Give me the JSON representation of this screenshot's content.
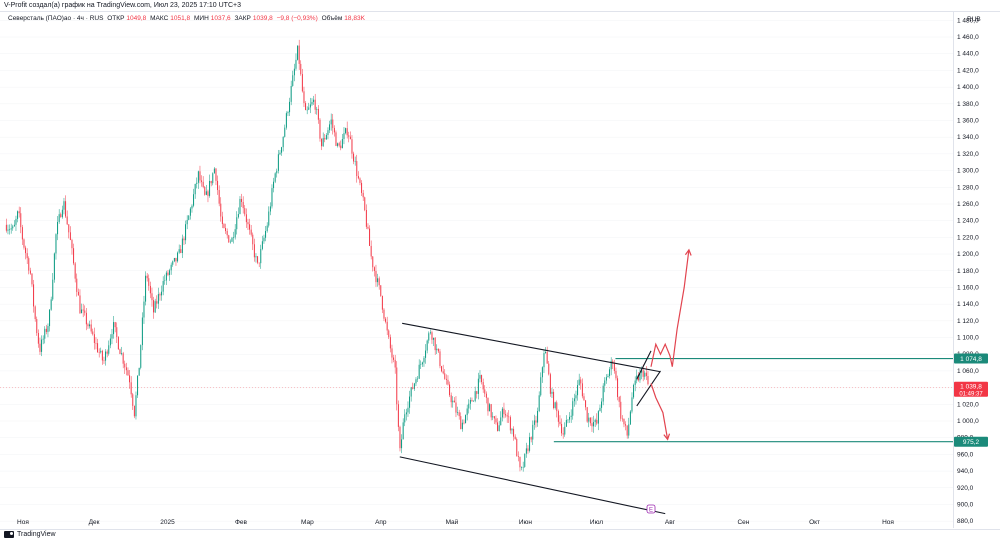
{
  "header": {
    "caption": "V-Profit создал(а) график на TradingView.com, Июл 23, 2025 17:10 UTC+3",
    "symbol": "Северсталь (ПАО)ао · 4ч · RUS",
    "open_label": "ОТКР",
    "open_value": "1049,8",
    "high_label": "МАКС",
    "high_value": "1051,8",
    "low_label": "МИН",
    "low_value": "1037,6",
    "close_label": "ЗАКР",
    "close_value": "1039,8",
    "change": "−9,8 (−0,93%)",
    "volume_label": "Объём",
    "volume_value": "18,83K"
  },
  "currency": "RUB",
  "footer": {
    "brand": "TradingView"
  },
  "chart_data": {
    "type": "candlestick",
    "title": "",
    "ylim": [
      873,
      1490
    ],
    "y_ticks": [
      "1 480,0",
      "1 460,0",
      "1 440,0",
      "1 420,0",
      "1 400,0",
      "1 380,0",
      "1 360,0",
      "1 340,0",
      "1 320,0",
      "1 300,0",
      "1 280,0",
      "1 260,0",
      "1 240,0",
      "1 220,0",
      "1 200,0",
      "1 180,0",
      "1 160,0",
      "1 140,0",
      "1 120,0",
      "1 100,0",
      "1 080,0",
      "1 060,0",
      "1 040,0",
      "1 020,0",
      "1 000,0",
      "980,0",
      "960,0",
      "940,0",
      "920,0",
      "900,0",
      "880,0"
    ],
    "y_tick_values": [
      1480,
      1460,
      1440,
      1420,
      1400,
      1380,
      1360,
      1340,
      1320,
      1300,
      1280,
      1260,
      1240,
      1220,
      1200,
      1180,
      1160,
      1140,
      1120,
      1100,
      1080,
      1060,
      1040,
      1020,
      1000,
      980,
      960,
      940,
      920,
      900,
      880
    ],
    "x_ticks": [
      "Ноя",
      "Дек",
      "2025",
      "Фев",
      "Мар",
      "Апр",
      "Май",
      "Июн",
      "Июл",
      "Авг",
      "Сен",
      "Окт",
      "Ноя"
    ],
    "price_path": [
      {
        "d": "2024-10-25",
        "v": 1235
      },
      {
        "d": "2024-10-28",
        "v": 1228
      },
      {
        "d": "2024-10-30",
        "v": 1250
      },
      {
        "d": "2024-11-01",
        "v": 1215
      },
      {
        "d": "2024-11-04",
        "v": 1180
      },
      {
        "d": "2024-11-06",
        "v": 1125
      },
      {
        "d": "2024-11-08",
        "v": 1085
      },
      {
        "d": "2024-11-12",
        "v": 1120
      },
      {
        "d": "2024-11-15",
        "v": 1225
      },
      {
        "d": "2024-11-18",
        "v": 1265
      },
      {
        "d": "2024-11-21",
        "v": 1215
      },
      {
        "d": "2024-11-25",
        "v": 1135
      },
      {
        "d": "2024-11-28",
        "v": 1118
      },
      {
        "d": "2024-12-02",
        "v": 1090
      },
      {
        "d": "2024-12-05",
        "v": 1070
      },
      {
        "d": "2024-12-09",
        "v": 1115
      },
      {
        "d": "2024-12-12",
        "v": 1085
      },
      {
        "d": "2024-12-16",
        "v": 1050
      },
      {
        "d": "2024-12-18",
        "v": 1010
      },
      {
        "d": "2024-12-20",
        "v": 1065
      },
      {
        "d": "2024-12-23",
        "v": 1180
      },
      {
        "d": "2024-12-26",
        "v": 1130
      },
      {
        "d": "2024-12-30",
        "v": 1165
      },
      {
        "d": "2025-01-06",
        "v": 1200
      },
      {
        "d": "2025-01-10",
        "v": 1245
      },
      {
        "d": "2025-01-14",
        "v": 1295
      },
      {
        "d": "2025-01-17",
        "v": 1265
      },
      {
        "d": "2025-01-21",
        "v": 1305
      },
      {
        "d": "2025-01-24",
        "v": 1230
      },
      {
        "d": "2025-01-28",
        "v": 1215
      },
      {
        "d": "2025-02-01",
        "v": 1270
      },
      {
        "d": "2025-02-05",
        "v": 1220
      },
      {
        "d": "2025-02-08",
        "v": 1185
      },
      {
        "d": "2025-02-12",
        "v": 1235
      },
      {
        "d": "2025-02-15",
        "v": 1290
      },
      {
        "d": "2025-02-19",
        "v": 1345
      },
      {
        "d": "2025-02-22",
        "v": 1395
      },
      {
        "d": "2025-02-25",
        "v": 1445
      },
      {
        "d": "2025-02-28",
        "v": 1365
      },
      {
        "d": "2025-03-04",
        "v": 1385
      },
      {
        "d": "2025-03-07",
        "v": 1330
      },
      {
        "d": "2025-03-11",
        "v": 1360
      },
      {
        "d": "2025-03-14",
        "v": 1325
      },
      {
        "d": "2025-03-18",
        "v": 1350
      },
      {
        "d": "2025-03-21",
        "v": 1310
      },
      {
        "d": "2025-03-25",
        "v": 1255
      },
      {
        "d": "2025-03-28",
        "v": 1195
      },
      {
        "d": "2025-04-01",
        "v": 1150
      },
      {
        "d": "2025-04-04",
        "v": 1100
      },
      {
        "d": "2025-04-07",
        "v": 1060
      },
      {
        "d": "2025-04-09",
        "v": 960
      },
      {
        "d": "2025-04-11",
        "v": 1010
      },
      {
        "d": "2025-04-15",
        "v": 1045
      },
      {
        "d": "2025-04-18",
        "v": 1070
      },
      {
        "d": "2025-04-22",
        "v": 1110
      },
      {
        "d": "2025-04-25",
        "v": 1080
      },
      {
        "d": "2025-04-29",
        "v": 1040
      },
      {
        "d": "2025-05-05",
        "v": 995
      },
      {
        "d": "2025-05-08",
        "v": 1015
      },
      {
        "d": "2025-05-13",
        "v": 1050
      },
      {
        "d": "2025-05-16",
        "v": 1020
      },
      {
        "d": "2025-05-20",
        "v": 990
      },
      {
        "d": "2025-05-23",
        "v": 1015
      },
      {
        "d": "2025-05-27",
        "v": 985
      },
      {
        "d": "2025-05-30",
        "v": 935
      },
      {
        "d": "2025-06-03",
        "v": 980
      },
      {
        "d": "2025-06-06",
        "v": 1005
      },
      {
        "d": "2025-06-09",
        "v": 1090
      },
      {
        "d": "2025-06-12",
        "v": 1030
      },
      {
        "d": "2025-06-17",
        "v": 985
      },
      {
        "d": "2025-06-20",
        "v": 1010
      },
      {
        "d": "2025-06-24",
        "v": 1050
      },
      {
        "d": "2025-06-27",
        "v": 1005
      },
      {
        "d": "2025-07-01",
        "v": 995
      },
      {
        "d": "2025-07-04",
        "v": 1040
      },
      {
        "d": "2025-07-08",
        "v": 1075
      },
      {
        "d": "2025-07-11",
        "v": 1010
      },
      {
        "d": "2025-07-14",
        "v": 982
      },
      {
        "d": "2025-07-16",
        "v": 1030
      },
      {
        "d": "2025-07-18",
        "v": 1050
      },
      {
        "d": "2025-07-21",
        "v": 1060
      },
      {
        "d": "2025-07-23",
        "v": 1040
      }
    ],
    "horizontal_levels": [
      {
        "value": 1074.8,
        "label": "1 074,8",
        "color": "#1b8a7a"
      },
      {
        "value": 975.2,
        "label": "975,2",
        "color": "#1b8a7a"
      }
    ],
    "current_price": {
      "value": 1039.8,
      "label": "1 039,8",
      "countdown": "01:49:37",
      "color": "#f23645"
    },
    "channel_lines": [
      {
        "from": {
          "d": "2025-04-10",
          "v": 1117
        },
        "to": {
          "d": "2025-07-28",
          "v": 1059
        }
      },
      {
        "from": {
          "d": "2025-04-09",
          "v": 957
        },
        "to": {
          "d": "2025-07-30",
          "v": 889
        }
      }
    ],
    "wedge_lines": [
      {
        "from": {
          "d": "2025-07-18",
          "v": 1050
        },
        "to": {
          "d": "2025-07-24",
          "v": 1084
        }
      },
      {
        "from": {
          "d": "2025-07-18",
          "v": 1018
        },
        "to": {
          "d": "2025-07-28",
          "v": 1060
        }
      }
    ],
    "scenario_up": [
      {
        "d": "2025-07-24",
        "v": 1065
      },
      {
        "d": "2025-07-26",
        "v": 1092
      },
      {
        "d": "2025-07-28",
        "v": 1080
      },
      {
        "d": "2025-07-30",
        "v": 1092
      },
      {
        "d": "2025-08-01",
        "v": 1078
      },
      {
        "d": "2025-08-02",
        "v": 1065
      },
      {
        "d": "2025-08-04",
        "v": 1110
      },
      {
        "d": "2025-08-07",
        "v": 1160
      },
      {
        "d": "2025-08-09",
        "v": 1205
      }
    ],
    "scenario_down": [
      {
        "d": "2025-07-24",
        "v": 1045
      },
      {
        "d": "2025-07-26",
        "v": 1028
      },
      {
        "d": "2025-07-29",
        "v": 1010
      },
      {
        "d": "2025-07-31",
        "v": 978
      }
    ],
    "event_marker": {
      "d": "2025-07-24",
      "label": "E"
    },
    "colors": {
      "up": "#089981",
      "down": "#f23645",
      "level": "#1b8a7a",
      "drawing": "#131722",
      "scenario": "#e2444f"
    }
  }
}
